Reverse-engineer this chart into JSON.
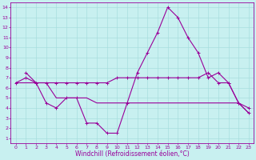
{
  "xlabel": "Windchill (Refroidissement éolien,°C)",
  "bg_color": "#c8f0f0",
  "line_color": "#990099",
  "grid_color": "#a8dede",
  "xlim": [
    -0.5,
    23.5
  ],
  "ylim": [
    0.5,
    14.5
  ],
  "yticks": [
    1,
    2,
    3,
    4,
    5,
    6,
    7,
    8,
    9,
    10,
    11,
    12,
    13,
    14
  ],
  "xticks": [
    0,
    1,
    2,
    3,
    4,
    5,
    6,
    7,
    8,
    9,
    10,
    11,
    12,
    13,
    14,
    15,
    16,
    17,
    18,
    19,
    20,
    21,
    22,
    23
  ],
  "line1_x": [
    0,
    1,
    2,
    3,
    4,
    5,
    6,
    7,
    8,
    9,
    10,
    11,
    12,
    13,
    14,
    15,
    16,
    17,
    18,
    19,
    20,
    21,
    22,
    23
  ],
  "line1_y": [
    6.5,
    7.0,
    6.5,
    6.5,
    6.5,
    6.5,
    6.5,
    6.5,
    6.5,
    6.5,
    7.0,
    7.0,
    7.0,
    7.0,
    7.0,
    7.0,
    7.0,
    7.0,
    7.0,
    7.5,
    6.5,
    6.5,
    4.5,
    4.0
  ],
  "line2_x": [
    1,
    2,
    3,
    4,
    5,
    6,
    7,
    8,
    9,
    10,
    11,
    12,
    13,
    14,
    15,
    16,
    17,
    18,
    19,
    20,
    21,
    22,
    23
  ],
  "line2_y": [
    7.5,
    6.5,
    4.5,
    4.0,
    5.0,
    5.0,
    2.5,
    2.5,
    1.5,
    1.5,
    4.5,
    7.5,
    9.5,
    11.5,
    14.0,
    13.0,
    11.0,
    9.5,
    7.0,
    7.5,
    6.5,
    4.5,
    3.5
  ],
  "line3_x": [
    0,
    1,
    2,
    3,
    4,
    5,
    6,
    7,
    8,
    9,
    10,
    11,
    12,
    13,
    14,
    15,
    16,
    17,
    18,
    19,
    20,
    21,
    22,
    23
  ],
  "line3_y": [
    6.5,
    6.5,
    6.5,
    6.5,
    5.0,
    5.0,
    5.0,
    5.0,
    4.5,
    4.5,
    4.5,
    4.5,
    4.5,
    4.5,
    4.5,
    4.5,
    4.5,
    4.5,
    4.5,
    4.5,
    4.5,
    4.5,
    4.5,
    3.5
  ],
  "marker": "+",
  "markersize": 3,
  "linewidth": 0.8,
  "axis_fontsize": 5.5,
  "tick_fontsize": 4.5
}
